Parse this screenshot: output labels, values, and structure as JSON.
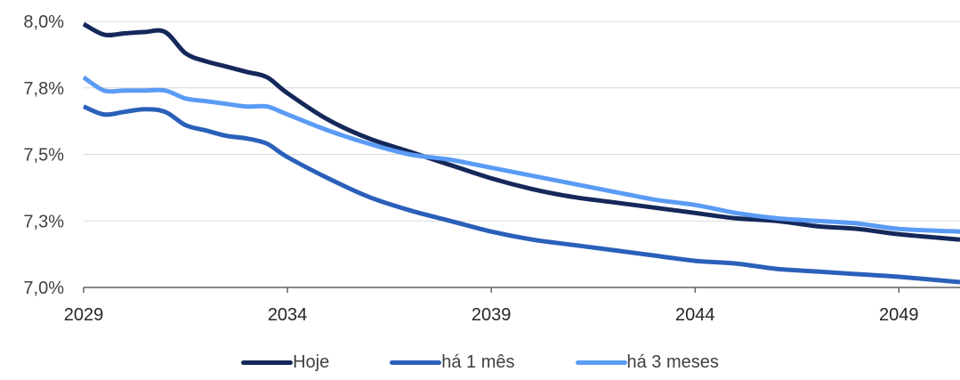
{
  "chart_data": {
    "type": "line",
    "title": "",
    "xlabel": "",
    "ylabel": "",
    "x": [
      2029,
      2029.5,
      2030,
      2030.5,
      2031,
      2031.5,
      2032,
      2032.5,
      2033,
      2033.5,
      2034,
      2035,
      2036,
      2037,
      2038,
      2039,
      2040,
      2041,
      2042,
      2043,
      2044,
      2045,
      2046,
      2047,
      2048,
      2049,
      2050.5
    ],
    "xlim": [
      2029,
      2050.5
    ],
    "xticks": [
      "2029",
      "2034",
      "2039",
      "2044",
      "2049"
    ],
    "xtick_values": [
      2029,
      2034,
      2039,
      2044,
      2049
    ],
    "ylim": [
      7.0,
      8.0
    ],
    "yticks": [
      "7,0%",
      "7,3%",
      "7,5%",
      "7,8%",
      "8,0%"
    ],
    "ytick_values": [
      7.0,
      7.25,
      7.5,
      7.75,
      8.0
    ],
    "grid": true,
    "legend_position": "bottom",
    "series": [
      {
        "name": "Hoje",
        "color": "#14285a",
        "values": [
          7.99,
          7.95,
          7.955,
          7.96,
          7.96,
          7.88,
          7.85,
          7.83,
          7.81,
          7.79,
          7.73,
          7.63,
          7.56,
          7.51,
          7.46,
          7.41,
          7.37,
          7.34,
          7.32,
          7.3,
          7.28,
          7.26,
          7.25,
          7.23,
          7.22,
          7.2,
          7.18
        ]
      },
      {
        "name": "há 1 mês",
        "color": "#2a60ba",
        "values": [
          7.68,
          7.65,
          7.66,
          7.67,
          7.66,
          7.61,
          7.59,
          7.57,
          7.56,
          7.54,
          7.49,
          7.41,
          7.34,
          7.29,
          7.25,
          7.21,
          7.18,
          7.16,
          7.14,
          7.12,
          7.1,
          7.09,
          7.07,
          7.06,
          7.05,
          7.04,
          7.02
        ]
      },
      {
        "name": "há 3 meses",
        "color": "#5a9bf5",
        "values": [
          7.79,
          7.74,
          7.74,
          7.74,
          7.74,
          7.71,
          7.7,
          7.69,
          7.68,
          7.68,
          7.65,
          7.59,
          7.54,
          7.5,
          7.48,
          7.45,
          7.42,
          7.39,
          7.36,
          7.33,
          7.31,
          7.28,
          7.26,
          7.25,
          7.24,
          7.22,
          7.21
        ]
      }
    ]
  }
}
